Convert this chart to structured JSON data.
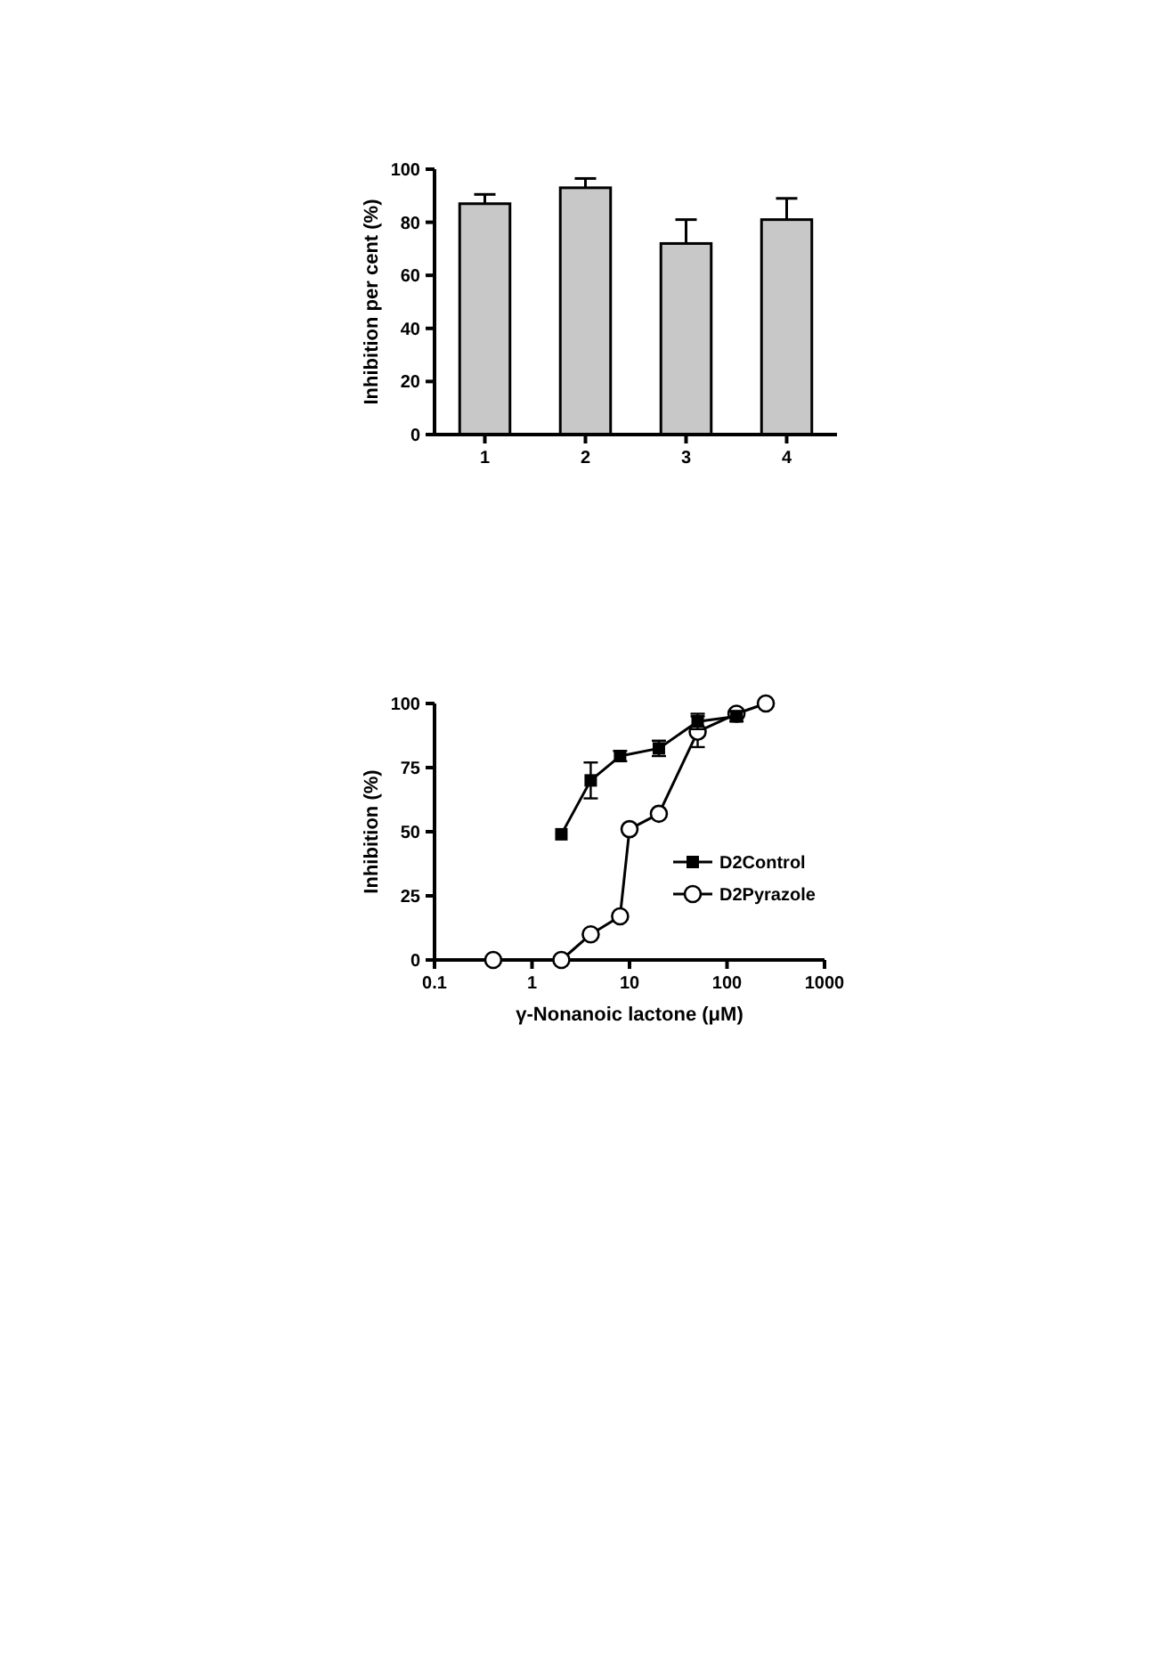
{
  "chart_data": [
    {
      "type": "bar",
      "ylabel": "Inhibition per cent (%)",
      "categories": [
        "1",
        "2",
        "3",
        "4"
      ],
      "values": [
        87,
        93,
        72,
        81
      ],
      "color": "#c8c8c8",
      "errors": [
        [
          87,
          90.5
        ],
        [
          93,
          96.5
        ],
        [
          72,
          81
        ],
        [
          81,
          89
        ]
      ],
      "ylim": [
        0,
        100
      ],
      "yticks": [
        0,
        20,
        40,
        60,
        80,
        100
      ],
      "grid": false,
      "legend": false
    },
    {
      "type": "line",
      "xlabel": "γ-Nonanoic lactone (μM)",
      "ylabel": "Inhibition (%)",
      "log": "x",
      "xlim": [
        0.1,
        1000
      ],
      "xticks": [
        0.1,
        1,
        10,
        100,
        1000
      ],
      "ylim": [
        0,
        100
      ],
      "yticks": [
        0,
        25,
        50,
        75,
        100
      ],
      "grid": false,
      "legend": "bottom right",
      "series": [
        {
          "name": "D2Control",
          "color": "#000000",
          "marker": "square",
          "x": [
            2,
            4,
            8,
            20,
            50,
            125
          ],
          "values": [
            49,
            70,
            79.5,
            82.5,
            93,
            95
          ],
          "errors": [
            null,
            7,
            2,
            3,
            3,
            2
          ]
        },
        {
          "name": "D2Pyrazole",
          "color": "#000000",
          "marker": "circle",
          "x": [
            0.4,
            2,
            4,
            8,
            10,
            20,
            50,
            125,
            250
          ],
          "values": [
            0,
            0,
            10,
            17,
            51,
            57,
            89,
            96,
            100
          ],
          "errors": [
            null,
            null,
            null,
            null,
            null,
            null,
            6,
            null,
            null
          ]
        }
      ]
    }
  ]
}
